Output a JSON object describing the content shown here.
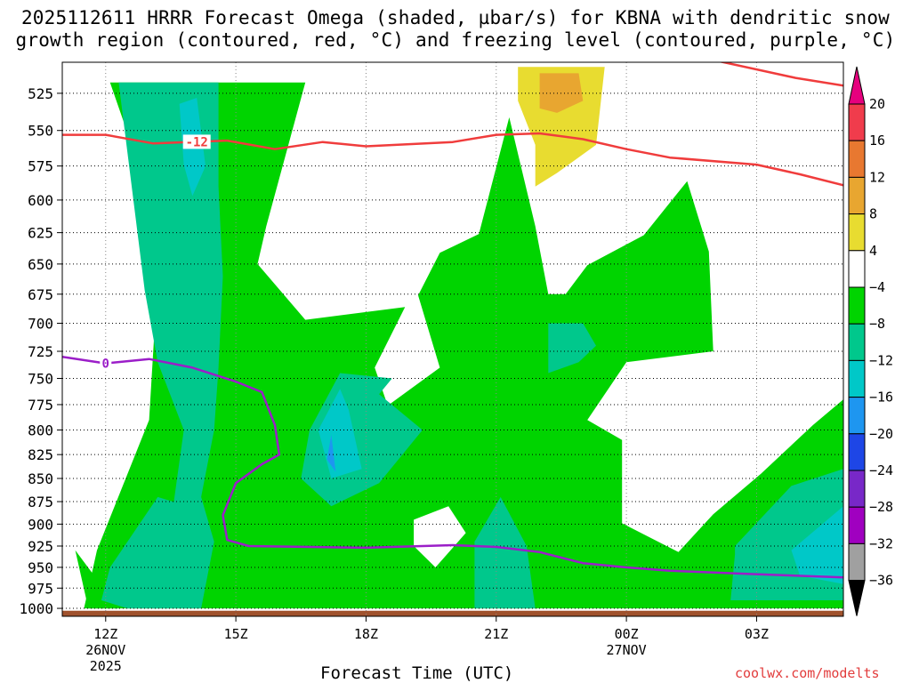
{
  "title": {
    "line1": "2025112611 HRRR Forecast Omega (shaded, µbar/s) for KBNA with dendritic snow",
    "line2": "growth region (contoured, red, °C) and freezing level (contoured, purple, °C)"
  },
  "credit": "coolwx.com/modelts",
  "chart_data": {
    "type": "heatmap",
    "title": "2025112611 HRRR Forecast Omega (shaded, µbar/s) for KBNA with dendritic snow growth region (contoured, red, °C) and freezing level (contoured, purple, °C)",
    "xlabel": "Forecast Time (UTC)",
    "ylabel": "",
    "x_ticks": [
      {
        "label": "12Z",
        "sub1": "26NOV",
        "sub2": "2025",
        "hour": 0
      },
      {
        "label": "15Z",
        "sub1": "",
        "sub2": "",
        "hour": 3
      },
      {
        "label": "18Z",
        "sub1": "",
        "sub2": "",
        "hour": 6
      },
      {
        "label": "21Z",
        "sub1": "",
        "sub2": "",
        "hour": 9
      },
      {
        "label": "00Z",
        "sub1": "27NOV",
        "sub2": "",
        "hour": 12
      },
      {
        "label": "03Z",
        "sub1": "",
        "sub2": "",
        "hour": 15
      }
    ],
    "xlim_hours": [
      -1,
      17
    ],
    "y_ticks": [
      525,
      550,
      575,
      600,
      625,
      650,
      675,
      700,
      725,
      750,
      775,
      800,
      825,
      850,
      875,
      900,
      925,
      950,
      975,
      1000
    ],
    "ylim_mb": [
      505,
      1010
    ],
    "y_scale": "log-pressure",
    "colorbar": {
      "labels": [
        "20",
        "16",
        "12",
        "8",
        "4",
        "−4",
        "−8",
        "−12",
        "−16",
        "−20",
        "−24",
        "−28",
        "−32",
        "−36"
      ],
      "colors": [
        "#f03c4c",
        "#e87830",
        "#e8a630",
        "#e8dc30",
        "#ffffff",
        "#00d400",
        "#00c88c",
        "#00c8c8",
        "#1e96f0",
        "#1e46e6",
        "#7828c8",
        "#a000c0",
        "#a0a0a0"
      ],
      "top_arrow_color": "#e6007e",
      "bottom_arrow_color": "#000000"
    },
    "contours": [
      {
        "label": "-12",
        "color": "#f03c3c",
        "label_at_hour": 2.1,
        "points": [
          [
            -1,
            553
          ],
          [
            0,
            553
          ],
          [
            1.1,
            559
          ],
          [
            2.8,
            557
          ],
          [
            3.9,
            563
          ],
          [
            5,
            558
          ],
          [
            6,
            561
          ],
          [
            8,
            558
          ],
          [
            9,
            553
          ],
          [
            10,
            552
          ],
          [
            11,
            556
          ],
          [
            12,
            563
          ],
          [
            13,
            569
          ],
          [
            15,
            574
          ],
          [
            16,
            581
          ],
          [
            17,
            589
          ]
        ]
      },
      {
        "label": "-12",
        "color": "#f03c3c",
        "label_at_hour": null,
        "points": [
          [
            13.9,
            503
          ],
          [
            15.9,
            515
          ],
          [
            17,
            520
          ]
        ]
      },
      {
        "label": "0",
        "color": "#9b1ec8",
        "label_at_hour": 0,
        "points": [
          [
            -1,
            730
          ],
          [
            0,
            736
          ],
          [
            1,
            732
          ],
          [
            2,
            740
          ],
          [
            3,
            753
          ],
          [
            3.6,
            763
          ],
          [
            3.9,
            795
          ],
          [
            4.0,
            825
          ],
          [
            3.6,
            835
          ],
          [
            3,
            855
          ],
          [
            2.7,
            890
          ],
          [
            2.8,
            918
          ],
          [
            3.3,
            925
          ],
          [
            6,
            927
          ],
          [
            8,
            924
          ],
          [
            9,
            926
          ],
          [
            10,
            932
          ],
          [
            11,
            945
          ],
          [
            12,
            950
          ],
          [
            13,
            954
          ],
          [
            14.9,
            958
          ],
          [
            17,
            962
          ]
        ]
      }
    ],
    "omega_regions": [
      {
        "level": "-8",
        "color": "#00d400",
        "points": [
          [
            0.1,
            518
          ],
          [
            4.6,
            518
          ],
          [
            3.7,
            620
          ],
          [
            3.5,
            650
          ],
          [
            4.6,
            697
          ],
          [
            6.9,
            686
          ],
          [
            6.2,
            740
          ],
          [
            6.5,
            776
          ],
          [
            7.7,
            740
          ],
          [
            7.2,
            676
          ],
          [
            7.7,
            641
          ],
          [
            8.6,
            626
          ],
          [
            9.3,
            541
          ],
          [
            9.9,
            620
          ],
          [
            10.2,
            675
          ],
          [
            10.6,
            675
          ],
          [
            11.1,
            651
          ],
          [
            12.4,
            627
          ],
          [
            13.4,
            586
          ],
          [
            13.9,
            640
          ],
          [
            14,
            725
          ],
          [
            12,
            735
          ],
          [
            11.1,
            790
          ],
          [
            11.9,
            810
          ],
          [
            11.9,
            850
          ],
          [
            11.9,
            899
          ],
          [
            13.2,
            932
          ],
          [
            14,
            889
          ],
          [
            15.1,
            845
          ],
          [
            16.3,
            795
          ],
          [
            17,
            770
          ],
          [
            17,
            1000
          ],
          [
            -0.5,
            1000
          ],
          [
            -0.2,
            930
          ],
          [
            1,
            790
          ],
          [
            1.2,
            660
          ],
          [
            0.6,
            560
          ]
        ]
      },
      {
        "level": "-8",
        "color": "#00d400",
        "points": [
          [
            -0.7,
            930
          ],
          [
            -0.4,
            1000
          ],
          [
            0.3,
            1000
          ]
        ]
      },
      {
        "level": "-12",
        "color": "#00c88c",
        "points": [
          [
            0.3,
            518
          ],
          [
            2.6,
            518
          ],
          [
            2.6,
            590
          ],
          [
            2.7,
            660
          ],
          [
            2.6,
            740
          ],
          [
            2.5,
            800
          ],
          [
            2.2,
            870
          ],
          [
            2.5,
            920
          ],
          [
            2.2,
            1000
          ],
          [
            1.1,
            1000
          ],
          [
            1.5,
            900
          ],
          [
            1.8,
            800
          ],
          [
            1.2,
            735
          ],
          [
            0.9,
            672
          ]
        ]
      },
      {
        "level": "-12",
        "color": "#00c88c",
        "points": [
          [
            1.9,
            880
          ],
          [
            1.2,
            870
          ],
          [
            0.1,
            950
          ],
          [
            -0.1,
            990
          ],
          [
            0.5,
            1000
          ],
          [
            1.2,
            1000
          ]
        ]
      },
      {
        "level": "-12",
        "color": "#00c88c",
        "points": [
          [
            6.6,
            750
          ],
          [
            5.4,
            745
          ],
          [
            4.7,
            800
          ],
          [
            4.5,
            850
          ],
          [
            5.2,
            880
          ],
          [
            6.3,
            855
          ],
          [
            7.3,
            800
          ],
          [
            6.3,
            765
          ]
        ]
      },
      {
        "level": "-12",
        "color": "#00c88c",
        "points": [
          [
            10.2,
            700
          ],
          [
            11,
            700
          ],
          [
            11.3,
            720
          ],
          [
            10.9,
            735
          ],
          [
            10.2,
            745
          ]
        ]
      },
      {
        "level": "-12",
        "color": "#00c88c",
        "points": [
          [
            9.1,
            870
          ],
          [
            9.7,
            925
          ],
          [
            9.9,
            1000
          ],
          [
            8.5,
            1000
          ],
          [
            8.5,
            920
          ]
        ]
      },
      {
        "level": "-12",
        "color": "#00c88c",
        "points": [
          [
            14.5,
            925
          ],
          [
            15.8,
            858
          ],
          [
            17,
            840
          ],
          [
            17,
            990
          ],
          [
            14.4,
            990
          ],
          [
            14.5,
            935
          ]
        ]
      },
      {
        "level": "-16",
        "color": "#00c8c8",
        "points": [
          [
            1.7,
            532
          ],
          [
            2.1,
            528
          ],
          [
            2.3,
            575
          ],
          [
            2,
            597
          ],
          [
            1.8,
            574
          ]
        ]
      },
      {
        "level": "-16",
        "color": "#00c8c8",
        "points": [
          [
            5.4,
            760
          ],
          [
            4.9,
            800
          ],
          [
            5.2,
            850
          ],
          [
            5.9,
            840
          ],
          [
            5.6,
            780
          ]
        ]
      },
      {
        "level": "-16",
        "color": "#00c8c8",
        "points": [
          [
            15.8,
            930
          ],
          [
            17,
            880
          ],
          [
            17,
            970
          ],
          [
            16,
            960
          ]
        ]
      },
      {
        "level": "-20",
        "color": "#1e96f0",
        "points": [
          [
            5.2,
            805
          ],
          [
            5.3,
            843
          ],
          [
            5.1,
            830
          ]
        ]
      },
      {
        "level": "4",
        "color": "#e8dc30",
        "points": [
          [
            9.5,
            508
          ],
          [
            11.5,
            508
          ],
          [
            11.3,
            560
          ],
          [
            10.4,
            580
          ],
          [
            9.9,
            590
          ],
          [
            9.9,
            560
          ],
          [
            9.5,
            530
          ]
        ]
      },
      {
        "level": "8",
        "color": "#e8a630",
        "points": [
          [
            10,
            512
          ],
          [
            10.9,
            512
          ],
          [
            11,
            530
          ],
          [
            10.4,
            538
          ],
          [
            10,
            535
          ]
        ]
      },
      {
        "level": "4",
        "color": "#ffffff",
        "points": [
          [
            7.1,
            895
          ],
          [
            7.9,
            880
          ],
          [
            8.3,
            910
          ],
          [
            7.6,
            950
          ],
          [
            7.1,
            925
          ]
        ]
      }
    ]
  }
}
